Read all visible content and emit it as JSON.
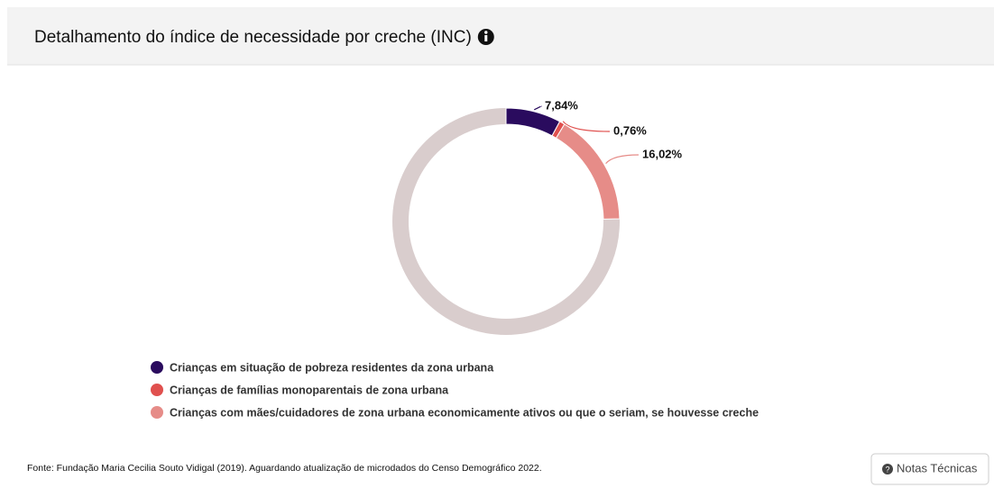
{
  "chart_data": {
    "type": "donut",
    "title": "Detalhamento do índice de necessidade por creche (INC)",
    "series": [
      {
        "name": "Crianças em situação de pobreza residentes da zona urbana",
        "color": "#2a0b5e",
        "values": [
          7.84
        ],
        "value_labels": [
          "7,84%"
        ]
      },
      {
        "name": "Crianças de famílias monoparentais de zona urbana",
        "color": "#e0504e",
        "values": [
          0.76
        ],
        "value_labels": [
          "0,76%"
        ]
      },
      {
        "name": "Crianças com mães/cuidadores de zona urbana economicamente ativos ou que o seriam, se houvesse creche",
        "color": "#e68c88",
        "values": [
          16.02
        ],
        "value_labels": [
          "16,02%"
        ]
      }
    ]
  },
  "source": "Fonte: Fundação Maria Cecilia Souto Vidigal (2019). Aguardando atualização de microdados do Censo Demográfico 2022.",
  "button": "Notas Técnicas"
}
